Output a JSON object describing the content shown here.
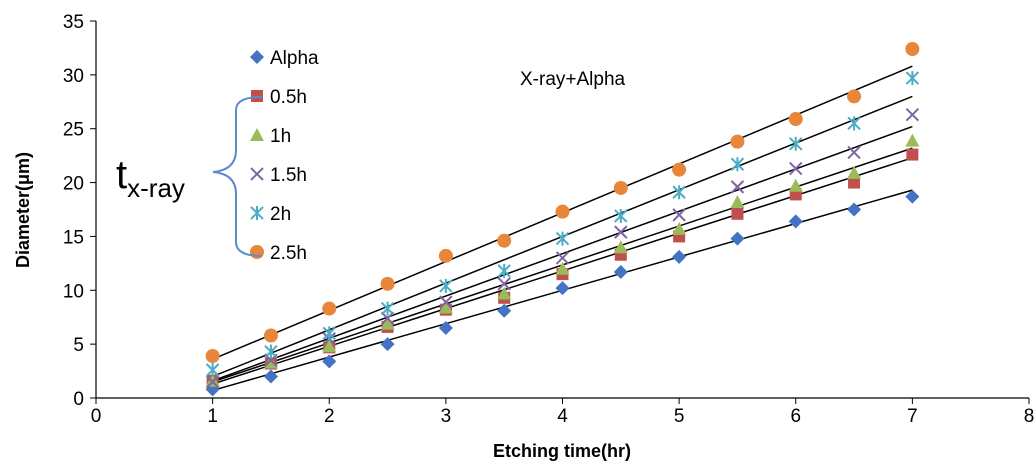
{
  "chart_data": {
    "type": "scatter",
    "title": "",
    "annotation": "X-ray+Alpha",
    "bracket_label": {
      "main": "t",
      "sub": "x-ray"
    },
    "xlabel": "Etching time(hr)",
    "ylabel": "Diameter(μm)",
    "xlim": [
      0,
      8
    ],
    "ylim": [
      0,
      35
    ],
    "x_ticks": [
      0,
      1,
      2,
      3,
      4,
      5,
      6,
      7,
      8
    ],
    "y_ticks": [
      0,
      5,
      10,
      15,
      20,
      25,
      30,
      35
    ],
    "grid": false,
    "legend_position": "top-left",
    "x": [
      1,
      1.5,
      2,
      2.5,
      3,
      3.5,
      4,
      4.5,
      5,
      5.5,
      6,
      6.5,
      7
    ],
    "series": [
      {
        "name": "Alpha",
        "marker": "diamond",
        "color": "#4472C4",
        "values": [
          0.8,
          2.0,
          3.4,
          5.0,
          6.5,
          8.1,
          10.2,
          11.7,
          13.1,
          14.8,
          16.4,
          17.5,
          18.7
        ],
        "fit": [
          0.7,
          19.3
        ]
      },
      {
        "name": "0.5h",
        "marker": "square",
        "color": "#C0504D",
        "values": [
          1.6,
          3.2,
          4.7,
          6.6,
          8.2,
          9.3,
          11.5,
          13.3,
          15.0,
          17.1,
          18.9,
          20.0,
          22.6
        ],
        "fit": [
          1.3,
          22.3
        ]
      },
      {
        "name": "1h",
        "marker": "triangle",
        "color": "#9BBB59",
        "values": [
          1.6,
          3.3,
          4.8,
          6.9,
          8.4,
          9.7,
          12.0,
          14.0,
          15.7,
          18.2,
          19.7,
          20.9,
          23.9
        ],
        "fit": [
          1.5,
          23.2
        ]
      },
      {
        "name": "1.5h",
        "marker": "x",
        "color": "#8064A2",
        "values": [
          1.5,
          3.5,
          5.5,
          7.4,
          8.9,
          10.6,
          13.0,
          15.4,
          17.0,
          19.6,
          21.3,
          22.8,
          26.3
        ],
        "fit": [
          1.6,
          25.2
        ]
      },
      {
        "name": "2h",
        "marker": "star",
        "color": "#4BACC6",
        "values": [
          2.6,
          4.3,
          6.0,
          8.3,
          10.4,
          11.8,
          14.8,
          16.9,
          19.1,
          21.7,
          23.6,
          25.5,
          29.7
        ],
        "fit": [
          2.0,
          28.0
        ]
      },
      {
        "name": "2.5h",
        "marker": "circle",
        "color": "#E8863A",
        "values": [
          3.9,
          5.8,
          8.3,
          10.6,
          13.2,
          14.6,
          17.3,
          19.5,
          21.2,
          23.8,
          25.9,
          28.0,
          32.4
        ],
        "fit": [
          3.6,
          30.8
        ]
      }
    ]
  }
}
